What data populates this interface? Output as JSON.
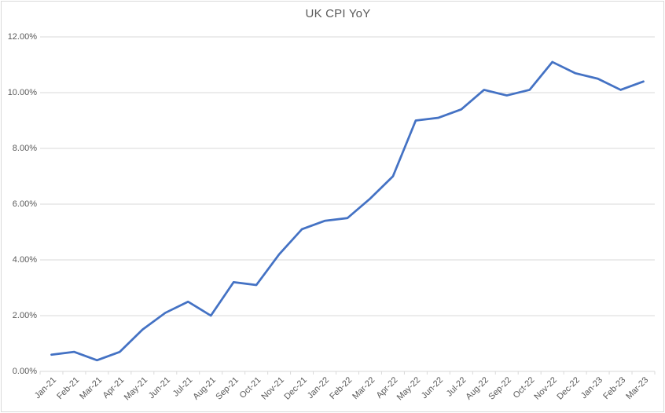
{
  "chart_data": {
    "type": "line",
    "title": "UK CPI YoY",
    "categories": [
      "Jan-21",
      "Feb-21",
      "Mar-21",
      "Apr-21",
      "May-21",
      "Jun-21",
      "Jul-21",
      "Aug-21",
      "Sep-21",
      "Oct-21",
      "Nov-21",
      "Dec-21",
      "Jan-22",
      "Feb-22",
      "Mar-22",
      "Apr-22",
      "May-22",
      "Jun-22",
      "Jul-22",
      "Aug-22",
      "Sep-22",
      "Oct-22",
      "Nov-22",
      "Dec-22",
      "Jan-23",
      "Feb-23",
      "Mar-23"
    ],
    "values": [
      0.6,
      0.7,
      0.4,
      0.7,
      1.5,
      2.1,
      2.5,
      2.0,
      3.2,
      3.1,
      4.2,
      5.1,
      5.4,
      5.5,
      6.2,
      7.0,
      9.0,
      9.1,
      9.4,
      10.1,
      9.9,
      10.1,
      11.1,
      10.7,
      10.5,
      10.1,
      10.4
    ],
    "value_unit": "%",
    "xlabel": "",
    "ylabel": "",
    "ylim": [
      0,
      12
    ],
    "y_tick_values": [
      0,
      2,
      4,
      6,
      8,
      10,
      12
    ],
    "y_tick_labels": [
      "0.00%",
      "2.00%",
      "4.00%",
      "6.00%",
      "8.00%",
      "10.00%",
      "12.00%"
    ],
    "grid": true,
    "legend_position": "none",
    "colors": {
      "line": "#4472C4",
      "title_text": "#595959",
      "axis_text": "#595959",
      "gridline": "#D9D9D9",
      "axis_line": "#D9D9D9",
      "background": "#FFFFFF",
      "border": "#D9D9D9"
    }
  }
}
